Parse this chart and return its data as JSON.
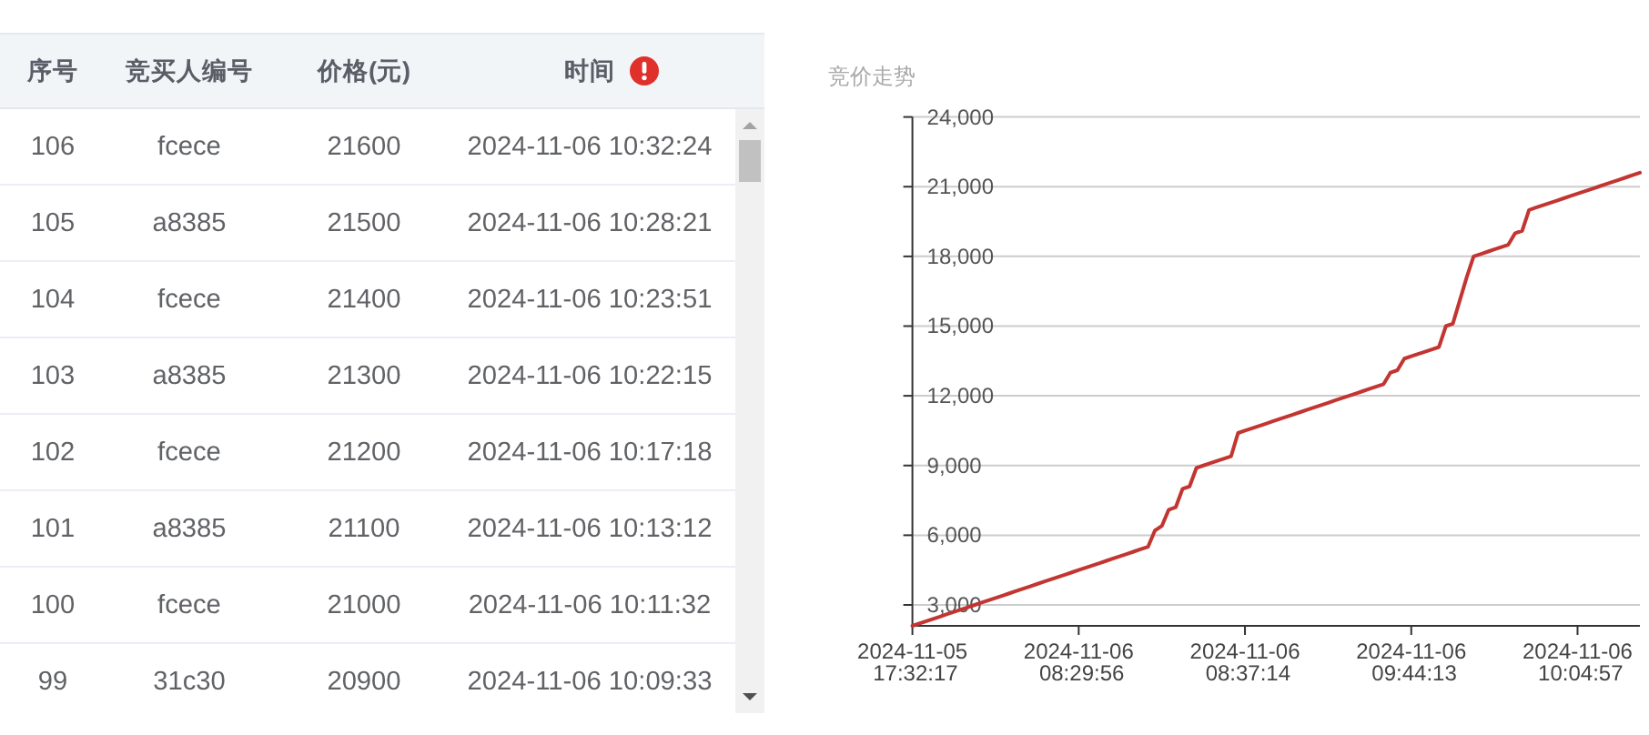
{
  "chart_data": [
    {
      "type": "heatmap",
      "ylabel": "序号",
      "categories": [
        "竞买人编号",
        "价格(元)",
        "时间"
      ],
      "y_categories": [
        "106",
        "105",
        "104",
        "103",
        "102",
        "101",
        "100",
        "99"
      ],
      "cells": [
        [
          null,
          null,
          null
        ],
        [
          null,
          null,
          null
        ],
        [
          null,
          null,
          null
        ],
        [
          null,
          null,
          null
        ],
        [
          null,
          null,
          null
        ],
        [
          null,
          null,
          null
        ],
        [
          null,
          null,
          null
        ],
        [
          null,
          null,
          null
        ]
      ],
      "cell_labels": [
        [
          "fcece",
          "21600",
          "2024-11-06 10:32:24"
        ],
        [
          "a8385",
          "21500",
          "2024-11-06 10:28:21"
        ],
        [
          "fcece",
          "21400",
          "2024-11-06 10:23:51"
        ],
        [
          "a8385",
          "21300",
          "2024-11-06 10:22:15"
        ],
        [
          "fcece",
          "21200",
          "2024-11-06 10:17:18"
        ],
        [
          "a8385",
          "21100",
          "2024-11-06 10:13:12"
        ],
        [
          "fcece",
          "21000",
          "2024-11-06 10:11:32"
        ],
        [
          "31c30",
          "20900",
          "2024-11-06 10:09:33"
        ]
      ]
    },
    {
      "type": "line",
      "title": "竞价走势",
      "categories": [
        "2024-11-05 17:32:17",
        null,
        null,
        null,
        null,
        null,
        null,
        null,
        null,
        null,
        null,
        null,
        null,
        null,
        null,
        null,
        null,
        null,
        null,
        null,
        null,
        null,
        null,
        null,
        "2024-11-06 08:29:56",
        null,
        null,
        null,
        null,
        null,
        null,
        null,
        null,
        null,
        null,
        null,
        null,
        null,
        null,
        null,
        null,
        null,
        null,
        null,
        null,
        null,
        null,
        null,
        "2024-11-06 08:37:14",
        null,
        null,
        null,
        null,
        null,
        null,
        null,
        null,
        null,
        null,
        null,
        null,
        null,
        null,
        null,
        null,
        null,
        null,
        null,
        null,
        null,
        null,
        null,
        "2024-11-06 09:44:13",
        null,
        null,
        null,
        null,
        null,
        null,
        null,
        null,
        null,
        null,
        null,
        null,
        null,
        null,
        null,
        null,
        null,
        null,
        null,
        null,
        null,
        null,
        null,
        "2024-11-06 10:04:57",
        null,
        null,
        null,
        null,
        null,
        null,
        null,
        null,
        null
      ],
      "series": [
        {
          "color": "#c23531",
          "values": [
            2100,
            2200,
            2300,
            2400,
            2500,
            2600,
            2700,
            2800,
            2900,
            3000,
            3100,
            3200,
            3300,
            3400,
            3500,
            3600,
            3700,
            3800,
            3900,
            4000,
            4100,
            4200,
            4300,
            4400,
            4500,
            4600,
            4700,
            4800,
            4900,
            5000,
            5100,
            5200,
            5300,
            5400,
            5500,
            6200,
            6400,
            7100,
            7200,
            8000,
            8100,
            8900,
            9000,
            9100,
            9200,
            9300,
            9400,
            10400,
            10500,
            10600,
            10700,
            10800,
            10900,
            11000,
            11100,
            11200,
            11300,
            11400,
            11500,
            11600,
            11700,
            11800,
            11900,
            12000,
            12100,
            12200,
            12300,
            12400,
            12500,
            13000,
            13100,
            13600,
            13700,
            13800,
            13900,
            14000,
            14100,
            15000,
            15100,
            16100,
            17100,
            18000,
            18100,
            18200,
            18300,
            18400,
            18500,
            19000,
            19100,
            20000,
            20100,
            20200,
            20300,
            20400,
            20500,
            20600,
            20700,
            20800,
            20900,
            21000,
            21100,
            21200,
            21300,
            21400,
            21500,
            21600
          ]
        }
      ],
      "ylim": [
        2100,
        24000
      ],
      "yticks": [
        {
          "value": 3000,
          "label": "3,000"
        },
        {
          "value": 6000,
          "label": "6,000"
        },
        {
          "value": 9000,
          "label": "9,000"
        },
        {
          "value": 12000,
          "label": "12,000"
        },
        {
          "value": 15000,
          "label": "15,000"
        },
        {
          "value": 18000,
          "label": "18,000"
        },
        {
          "value": 21000,
          "label": "21,000"
        },
        {
          "value": 24000,
          "label": "24,000"
        }
      ],
      "grid": "y",
      "line_style": "solid"
    }
  ]
}
